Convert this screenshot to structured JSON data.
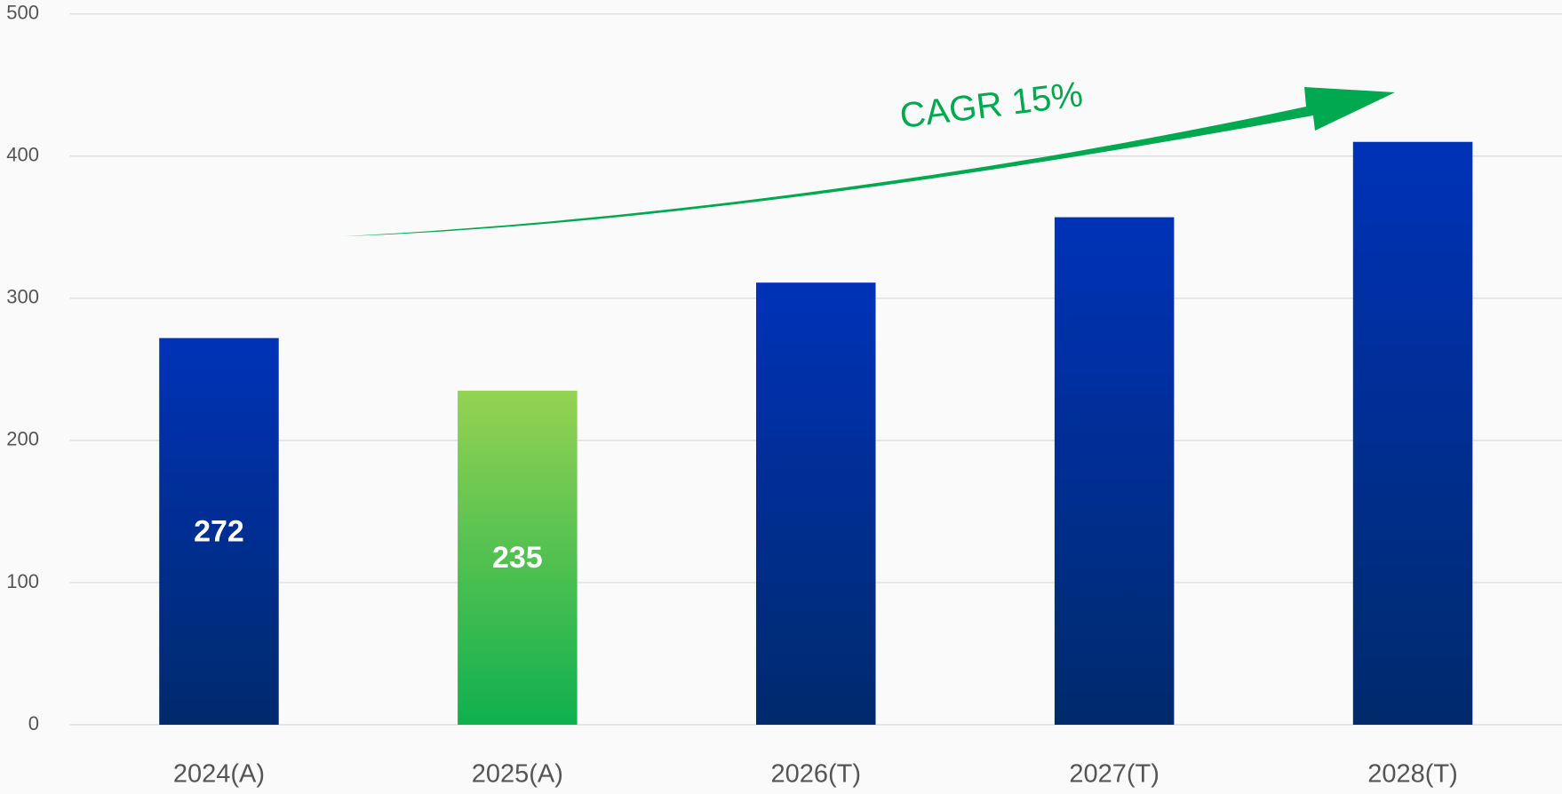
{
  "chart_data": {
    "type": "bar",
    "categories": [
      "2024(A)",
      "2025(A)",
      "2026(T)",
      "2027(T)",
      "2028(T)"
    ],
    "values": [
      272,
      235,
      311,
      357,
      410
    ],
    "colors": [
      [
        "#0032b8",
        "#002a6c"
      ],
      [
        "#95d252",
        "#0fb04f"
      ],
      [
        "#0032b8",
        "#002a6c"
      ],
      [
        "#0032b8",
        "#002a6c"
      ],
      [
        "#0032b8",
        "#002a6c"
      ]
    ],
    "data_labels": [
      true,
      true,
      false,
      false,
      false
    ],
    "ylim": [
      0,
      500
    ],
    "yticks": [
      0,
      100,
      200,
      300,
      400,
      500
    ],
    "grid": true,
    "annotation": "CAGR 15%",
    "annotation_color": "#00a84f"
  }
}
